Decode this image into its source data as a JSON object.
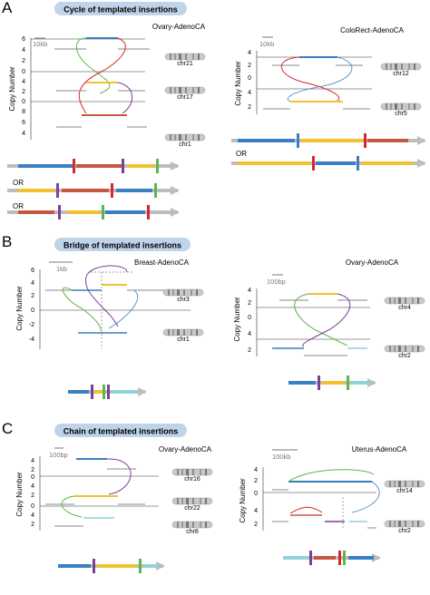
{
  "panels": [
    {
      "letter": "A",
      "title": "Cycle of templated insertions"
    },
    {
      "letter": "B",
      "title": "Bridge of templated insertions"
    },
    {
      "letter": "C",
      "title": "Chain of templated insertions"
    }
  ],
  "axis": {
    "ylabel": "Copy Number",
    "ticks_a1": [
      "6",
      "4",
      "2",
      "0",
      "4",
      "2",
      "0",
      "8",
      "6",
      "4"
    ],
    "ticks_a2": [
      "4",
      "2",
      "0",
      "4",
      "2"
    ],
    "ticks_b1": [
      "6",
      "4",
      "2",
      "0",
      "-2",
      "-4"
    ],
    "ticks_b2": [
      "4",
      "2",
      "0",
      "4",
      "2"
    ],
    "ticks_c1": [
      "4",
      "2",
      "0",
      "4",
      "2",
      "0",
      "4",
      "2"
    ],
    "ticks_c2": [
      "4",
      "2",
      "0",
      "4",
      "2"
    ]
  },
  "scale_bars": {
    "a1": "10kb",
    "a2": "10kb",
    "b1": "1kb",
    "b2": "100bp",
    "c1": "100bp",
    "c2": "100kb"
  },
  "samples": {
    "a1": "Ovary-AdenoCA",
    "a2": "ColoRect-AdenoCA",
    "b1": "Breast-AdenoCA",
    "b2": "Ovary-AdenoCA",
    "c1": "Ovary-AdenoCA",
    "c2": "Uterus-AdenoCA"
  },
  "chromosomes": {
    "a1": [
      "chr21",
      "chr17",
      "chr1"
    ],
    "a2": [
      "chr12",
      "chr5"
    ],
    "b1": [
      "chr3",
      "chr1"
    ],
    "b2": [
      "chr4",
      "chr2"
    ],
    "c1": [
      "chr16",
      "chr22",
      "chr8"
    ],
    "c2": [
      "chr14",
      "chr2"
    ]
  },
  "or_label": "OR",
  "colors": {
    "blue": "#3a7fc0",
    "yellow": "#f2c12e",
    "orange": "#c8553d",
    "purple": "#7b3f98",
    "red": "#d7262e",
    "green": "#5eb648",
    "lightblue": "#8fd3d8",
    "grey": "#a0a0a0",
    "pill": "#bfd4e8"
  }
}
